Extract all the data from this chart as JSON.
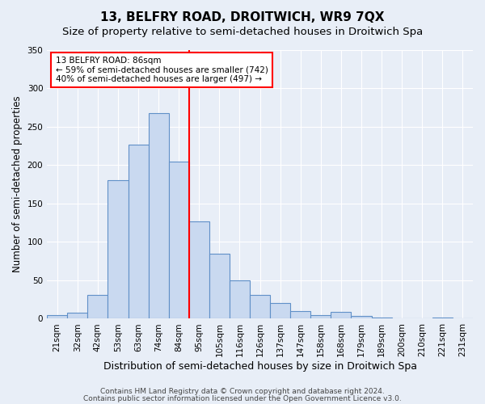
{
  "title": "13, BELFRY ROAD, DROITWICH, WR9 7QX",
  "subtitle": "Size of property relative to semi-detached houses in Droitwich Spa",
  "xlabel": "Distribution of semi-detached houses by size in Droitwich Spa",
  "ylabel": "Number of semi-detached properties",
  "bar_labels": [
    "21sqm",
    "32sqm",
    "42sqm",
    "53sqm",
    "63sqm",
    "74sqm",
    "84sqm",
    "95sqm",
    "105sqm",
    "116sqm",
    "126sqm",
    "137sqm",
    "147sqm",
    "158sqm",
    "168sqm",
    "179sqm",
    "189sqm",
    "200sqm",
    "210sqm",
    "221sqm",
    "231sqm"
  ],
  "bar_values": [
    5,
    8,
    31,
    180,
    226,
    268,
    204,
    127,
    85,
    50,
    31,
    20,
    10,
    5,
    9,
    4,
    2,
    1,
    0,
    2,
    1
  ],
  "bar_color": "#c9d9f0",
  "bar_edge_color": "#6090c8",
  "vline_index": 6,
  "vline_color": "red",
  "annotation_title": "13 BELFRY ROAD: 86sqm",
  "annotation_line1": "← 59% of semi-detached houses are smaller (742)",
  "annotation_line2": "40% of semi-detached houses are larger (497) →",
  "annotation_box_color": "white",
  "annotation_box_edge_color": "red",
  "ylim": [
    0,
    350
  ],
  "yticks": [
    0,
    50,
    100,
    150,
    200,
    250,
    300,
    350
  ],
  "bg_color": "#e8eef7",
  "footer1": "Contains HM Land Registry data © Crown copyright and database right 2024.",
  "footer2": "Contains public sector information licensed under the Open Government Licence v3.0.",
  "title_fontsize": 11,
  "subtitle_fontsize": 9.5,
  "xlabel_fontsize": 9,
  "ylabel_fontsize": 8.5,
  "tick_fontsize": 7.5,
  "footer_fontsize": 6.5
}
